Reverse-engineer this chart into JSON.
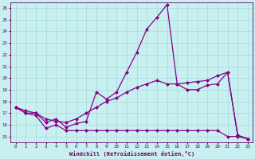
{
  "xlabel": "Windchill (Refroidissement éolien,°C)",
  "background_color": "#c8f0f0",
  "grid_color": "#aadddd",
  "line_color": "#880088",
  "xlim": [
    -0.5,
    23.5
  ],
  "ylim": [
    14.5,
    26.5
  ],
  "xticks": [
    0,
    1,
    2,
    3,
    4,
    5,
    6,
    7,
    8,
    9,
    10,
    11,
    12,
    13,
    14,
    15,
    16,
    17,
    18,
    19,
    20,
    21,
    22,
    23
  ],
  "yticks": [
    15,
    16,
    17,
    18,
    19,
    20,
    21,
    22,
    23,
    24,
    25,
    26
  ],
  "line1_x": [
    0,
    1,
    2,
    3,
    4,
    5,
    6,
    7,
    8,
    9,
    10,
    11,
    12,
    13,
    14,
    15,
    16,
    17,
    18,
    19,
    20,
    21,
    22,
    23
  ],
  "line1_y": [
    17.5,
    17.2,
    17.0,
    16.5,
    16.3,
    16.2,
    16.5,
    17.0,
    17.5,
    18.0,
    18.3,
    18.8,
    19.2,
    19.5,
    19.8,
    19.5,
    19.5,
    19.6,
    19.7,
    19.8,
    20.2,
    20.5,
    15.1,
    14.8
  ],
  "line2_x": [
    0,
    1,
    2,
    3,
    4,
    5,
    6,
    7,
    8,
    9,
    10,
    11,
    12,
    13,
    14,
    15,
    16,
    17,
    18,
    19,
    20,
    21,
    22,
    23
  ],
  "line2_y": [
    17.5,
    17.0,
    17.0,
    16.2,
    16.5,
    15.8,
    16.1,
    16.3,
    18.8,
    18.2,
    18.8,
    20.5,
    22.2,
    24.2,
    25.2,
    26.3,
    19.5,
    19.0,
    19.0,
    19.4,
    19.5,
    20.5,
    15.1,
    14.8
  ],
  "line3_x": [
    0,
    1,
    2,
    3,
    4,
    5,
    6,
    7,
    8,
    9,
    10,
    11,
    12,
    13,
    14,
    15,
    16,
    17,
    18,
    19,
    20,
    21,
    22,
    23
  ],
  "line3_y": [
    17.5,
    17.0,
    16.8,
    15.7,
    16.0,
    15.5,
    15.5,
    15.5,
    15.5,
    15.5,
    15.5,
    15.5,
    15.5,
    15.5,
    15.5,
    15.5,
    15.5,
    15.5,
    15.5,
    15.5,
    15.5,
    15.0,
    15.0,
    14.8
  ]
}
